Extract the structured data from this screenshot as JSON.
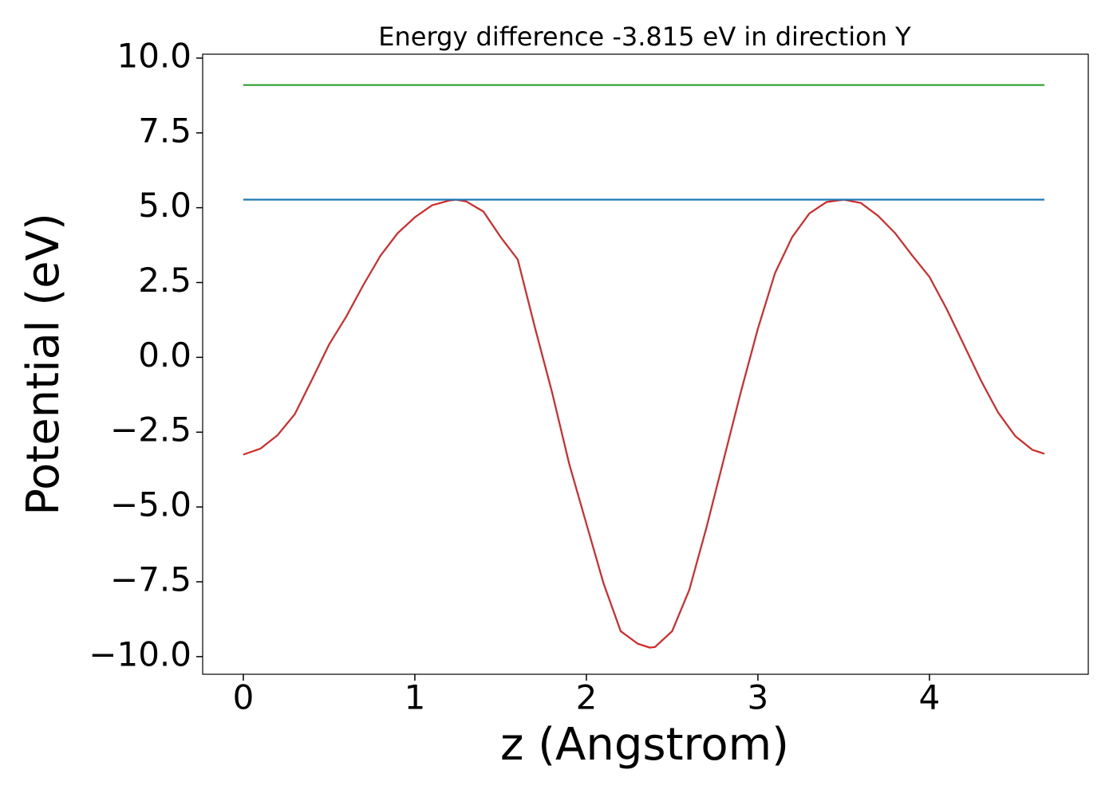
{
  "chart_data": {
    "type": "line",
    "title": "Energy difference -3.815 eV in direction Y",
    "xlabel": "z (Angstrom)",
    "ylabel": "Potential (eV)",
    "xlim": [
      -0.237,
      4.926
    ],
    "ylim": [
      -10.59,
      10.13
    ],
    "xticks": [
      0,
      1,
      2,
      3,
      4
    ],
    "yticks": [
      {
        "value": -10,
        "label": "−10.0"
      },
      {
        "value": -7.5,
        "label": "−7.5"
      },
      {
        "value": -5,
        "label": "−5.0"
      },
      {
        "value": -2.5,
        "label": "−2.5"
      },
      {
        "value": 0,
        "label": "0.0"
      },
      {
        "value": 2.5,
        "label": "2.5"
      },
      {
        "value": 5,
        "label": "5.0"
      },
      {
        "value": 7.5,
        "label": "7.5"
      },
      {
        "value": 10,
        "label": "10.0"
      }
    ],
    "series": [
      {
        "color": "#d62728",
        "x": [
          0,
          0.1,
          0.2,
          0.3,
          0.4,
          0.5,
          0.6,
          0.7,
          0.8,
          0.9,
          1.0,
          1.1,
          1.2,
          1.24,
          1.3,
          1.4,
          1.5,
          1.6,
          1.7,
          1.8,
          1.9,
          2.0,
          2.1,
          2.2,
          2.3,
          2.37,
          2.4,
          2.5,
          2.6,
          2.7,
          2.8,
          2.9,
          3.0,
          3.1,
          3.2,
          3.3,
          3.4,
          3.5,
          3.6,
          3.7,
          3.8,
          3.9,
          4.0,
          4.1,
          4.2,
          4.3,
          4.4,
          4.5,
          4.6,
          4.67
        ],
        "values": [
          -3.25,
          -3.05,
          -2.6,
          -1.9,
          -0.75,
          0.43,
          1.36,
          2.42,
          3.4,
          4.15,
          4.68,
          5.08,
          5.24,
          5.27,
          5.21,
          4.87,
          4.02,
          3.27,
          1.0,
          -1.17,
          -3.56,
          -5.56,
          -7.55,
          -9.15,
          -9.57,
          -9.7,
          -9.68,
          -9.15,
          -7.77,
          -5.69,
          -3.43,
          -1.17,
          0.96,
          2.82,
          4.02,
          4.81,
          5.19,
          5.27,
          5.16,
          4.73,
          4.15,
          3.4,
          2.69,
          1.62,
          0.43,
          -0.77,
          -1.84,
          -2.63,
          -3.09,
          -3.22
        ]
      },
      {
        "color": "#1f77b4",
        "x": [
          0,
          4.67
        ],
        "values": [
          5.27,
          5.27
        ]
      },
      {
        "color": "#2ca02c",
        "x": [
          0,
          4.67
        ],
        "values": [
          9.1,
          9.1
        ]
      }
    ]
  }
}
